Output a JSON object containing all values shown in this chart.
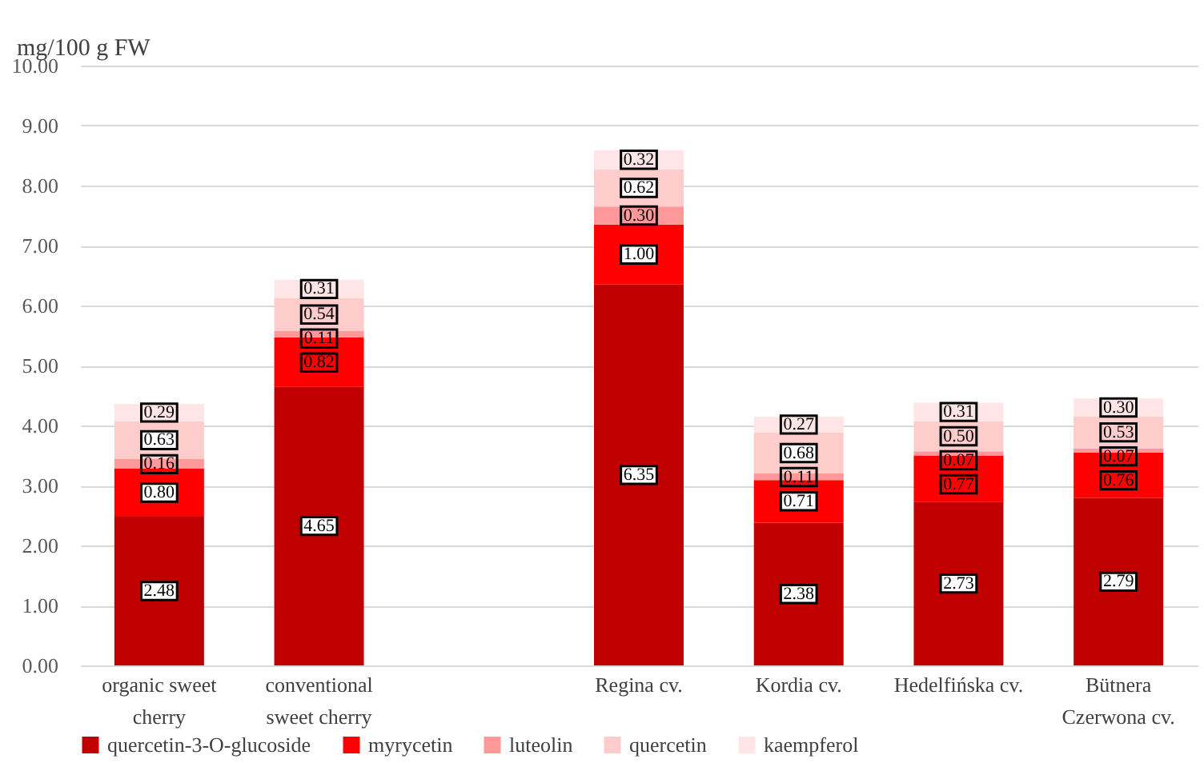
{
  "chart_data": {
    "type": "bar",
    "stacked": true,
    "ylabel": "mg/100 g FW",
    "categories": [
      "organic sweet cherry",
      "conventional sweet cherry",
      null,
      "Regina cv.",
      "Kordia cv.",
      "Hedelfińska cv.",
      "Bütnera Czerwona cv."
    ],
    "series": [
      {
        "name": "quercetin-3-O-glucoside",
        "color": "#c00000",
        "values": [
          2.48,
          4.65,
          null,
          6.35,
          2.38,
          2.73,
          2.79
        ],
        "value_labels": [
          "2.48",
          "4.65",
          null,
          "6.35",
          "2.38",
          "2.73",
          "2.79"
        ]
      },
      {
        "name": "myrycetin",
        "color": "#ff0000",
        "values": [
          0.8,
          0.82,
          null,
          1.0,
          0.71,
          0.77,
          0.76
        ],
        "value_labels": [
          "0.80",
          "0.82",
          null,
          "1.00",
          "0.71",
          "0.77",
          "0.76"
        ]
      },
      {
        "name": "luteolin",
        "color": "#ff9999",
        "values": [
          0.16,
          0.11,
          null,
          0.3,
          0.11,
          0.07,
          0.07
        ],
        "value_labels": [
          "0.16",
          "0.11",
          null,
          "0.30",
          "0.11",
          "0.07",
          "0.07"
        ]
      },
      {
        "name": "quercetin",
        "color": "#ffcccc",
        "values": [
          0.63,
          0.54,
          null,
          0.62,
          0.68,
          0.5,
          0.53
        ],
        "value_labels": [
          "0.63",
          "0.54",
          null,
          "0.62",
          "0.68",
          "0.50",
          "0.53"
        ]
      },
      {
        "name": "kaempferol",
        "color": "#ffe5e5",
        "values": [
          0.29,
          0.31,
          null,
          0.32,
          0.27,
          0.31,
          0.3
        ],
        "value_labels": [
          "0.29",
          "0.31",
          null,
          "0.32",
          "0.27",
          "0.31",
          "0.30"
        ]
      }
    ],
    "ylim": [
      0,
      10
    ],
    "yticks": [
      {
        "value": 0,
        "label": "0.00"
      },
      {
        "value": 1,
        "label": "1.00"
      },
      {
        "value": 2,
        "label": "2.00"
      },
      {
        "value": 3,
        "label": "3.00"
      },
      {
        "value": 4,
        "label": "4.00"
      },
      {
        "value": 5,
        "label": "5.00"
      },
      {
        "value": 6,
        "label": "6.00"
      },
      {
        "value": 7,
        "label": "7.00"
      },
      {
        "value": 8,
        "label": "8.00"
      },
      {
        "value": 9,
        "label": "9.00"
      },
      {
        "value": 10,
        "label": "10.00"
      }
    ],
    "grid": "y",
    "legend": "bottom"
  }
}
